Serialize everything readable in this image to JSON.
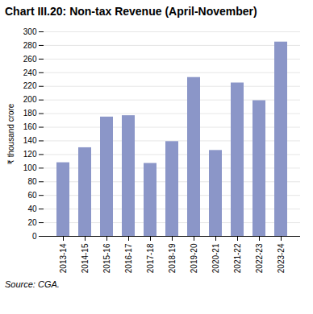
{
  "chart_data": {
    "type": "bar",
    "title": "Chart III.20: Non-tax Revenue (April-November)",
    "categories": [
      "2013-14",
      "2014-15",
      "2015-16",
      "2016-17",
      "2017-18",
      "2018-19",
      "2019-20",
      "2020-21",
      "2021-22",
      "2022-23",
      "2023-24"
    ],
    "values": [
      108,
      130,
      175,
      177,
      107,
      139,
      233,
      126,
      225,
      199,
      285
    ],
    "color": "#8b96c8",
    "ylabel": "₹ thousand crore",
    "ylim": [
      0,
      300
    ],
    "yticks": [
      0,
      20,
      40,
      60,
      80,
      100,
      120,
      140,
      160,
      180,
      200,
      220,
      240,
      260,
      280,
      300
    ],
    "grid": true,
    "source": "Source: CGA."
  }
}
